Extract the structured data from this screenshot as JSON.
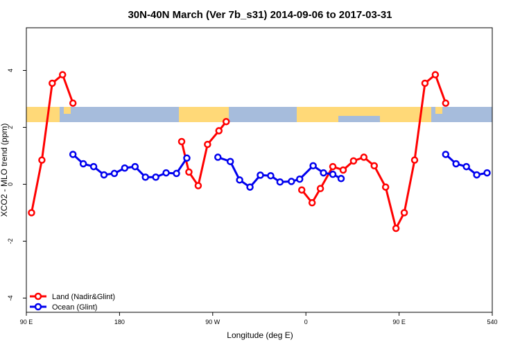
{
  "chart_data": {
    "type": "line",
    "title": "30N-40N March (Ver 7b_s31)   2014-09-06 to 2017-03-31",
    "x_label": "Longitude (deg E)",
    "y_label": "XCO2 - MLO trend (ppm)",
    "xlim": [
      90,
      540
    ],
    "ylim": [
      -4.5,
      5.5
    ],
    "xticks": [
      {
        "value": 90,
        "label": "90 E"
      },
      180,
      {
        "value": 270,
        "label": "90 W"
      },
      {
        "value": 360,
        "label": "0"
      },
      {
        "value": 450,
        "label": "90 E"
      },
      540
    ],
    "yticks": [
      -4,
      -2,
      0,
      2,
      4
    ],
    "legend": "bottom-left",
    "series": [
      {
        "name": "Land (Nadir&Glint)",
        "color": "#ff0000",
        "x": [
          95,
          105,
          115,
          125,
          135,
          null,
          240,
          247,
          256,
          265,
          276,
          283,
          null,
          356,
          366,
          374,
          386,
          396,
          406,
          416,
          426,
          437,
          447,
          455,
          465,
          475,
          485,
          495
        ],
        "values": [
          -1.0,
          0.85,
          3.55,
          3.85,
          2.85,
          null,
          1.5,
          0.43,
          -0.05,
          1.4,
          1.88,
          2.2,
          null,
          -0.2,
          -0.65,
          -0.15,
          0.62,
          0.5,
          0.82,
          0.95,
          0.65,
          -0.1,
          -1.55,
          -1.0,
          0.85,
          3.55,
          3.85,
          2.85
        ]
      },
      {
        "name": "Ocean (Glint)",
        "color": "#0000ee",
        "x": [
          135,
          145,
          155,
          165,
          175,
          185,
          195,
          205,
          215,
          225,
          235,
          245,
          null,
          275,
          287,
          296,
          306,
          316,
          326,
          335,
          346,
          354,
          367,
          377,
          386,
          394,
          null,
          495,
          505,
          515,
          525,
          535
        ],
        "values": [
          1.05,
          0.72,
          0.62,
          0.33,
          0.38,
          0.57,
          0.62,
          0.25,
          0.25,
          0.4,
          0.38,
          0.92,
          null,
          0.95,
          0.8,
          0.15,
          -0.1,
          0.32,
          0.3,
          0.08,
          0.1,
          0.18,
          0.65,
          0.4,
          0.35,
          0.2,
          null,
          1.05,
          0.72,
          0.62,
          0.33,
          0.4
        ]
      }
    ]
  }
}
